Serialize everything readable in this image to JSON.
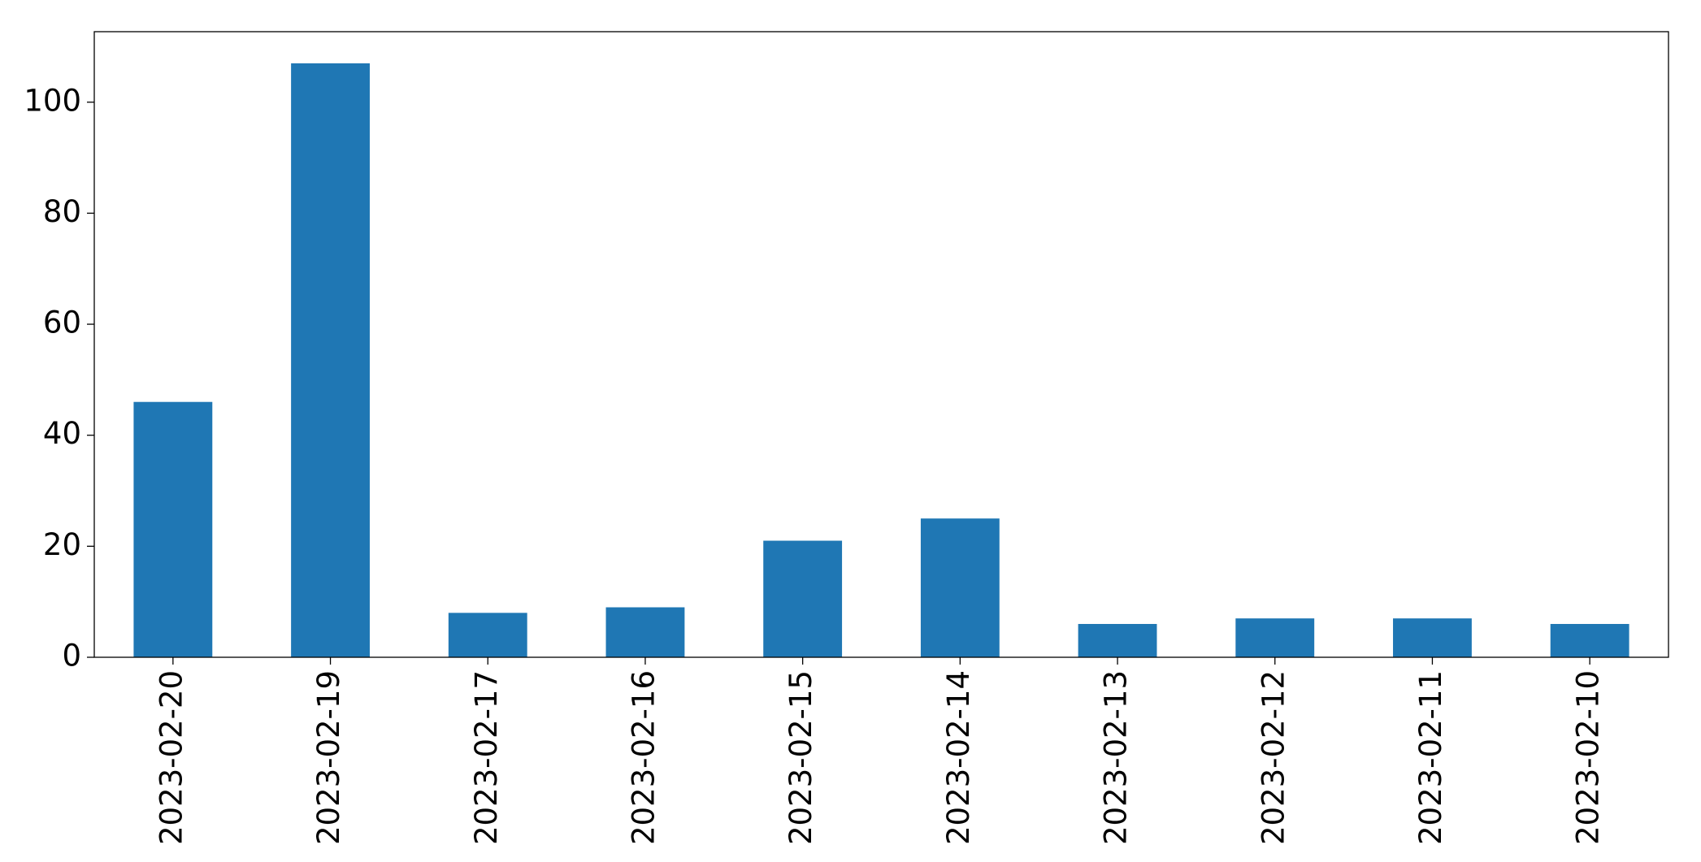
{
  "chart_data": {
    "type": "bar",
    "categories": [
      "2023-02-20",
      "2023-02-19",
      "2023-02-17",
      "2023-02-16",
      "2023-02-15",
      "2023-02-14",
      "2023-02-13",
      "2023-02-12",
      "2023-02-11",
      "2023-02-10"
    ],
    "values": [
      46,
      107,
      8,
      9,
      21,
      25,
      6,
      7,
      7,
      6
    ],
    "color": "#1f77b4",
    "ylim": [
      0,
      112.7
    ],
    "yticks": [
      0,
      20,
      40,
      60,
      80,
      100
    ],
    "grid": false
  }
}
